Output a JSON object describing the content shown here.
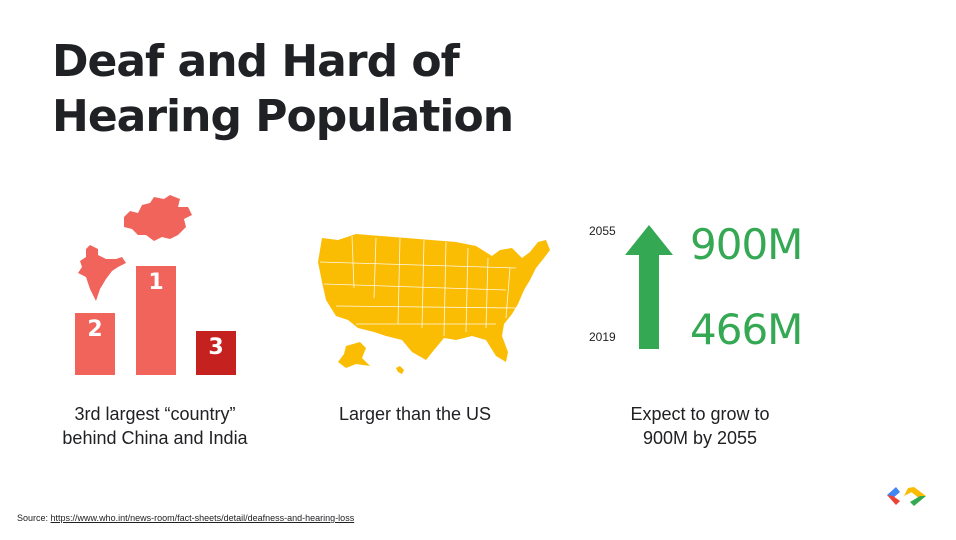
{
  "slide": {
    "title_line1": "Deaf and Hard of",
    "title_line2": "Hearing Population"
  },
  "podium": {
    "first_rank": "1",
    "second_rank": "2",
    "third_rank": "3",
    "caption_line1": "3rd largest “country”",
    "caption_line2": "behind China and India",
    "colors": {
      "china_india": "#f0645c",
      "third": "#c5221f"
    },
    "icons": [
      "china-map-icon",
      "india-map-icon"
    ]
  },
  "us_comparison": {
    "caption": "Larger than the US",
    "map_color": "#fbbc04",
    "icon": "us-map-icon"
  },
  "growth": {
    "year_future": "2055",
    "year_current": "2019",
    "value_future": "900M",
    "value_current": "466M",
    "caption_line1": "Expect to grow to",
    "caption_line2": "900M by 2055",
    "color": "#34a853",
    "icon": "up-arrow-icon"
  },
  "footer": {
    "source_label": "Source:",
    "source_link": "https://www.who.int/news-room/fact-sheets/detail/deafness-and-hearing-loss",
    "logo": "google-developers-logo"
  }
}
